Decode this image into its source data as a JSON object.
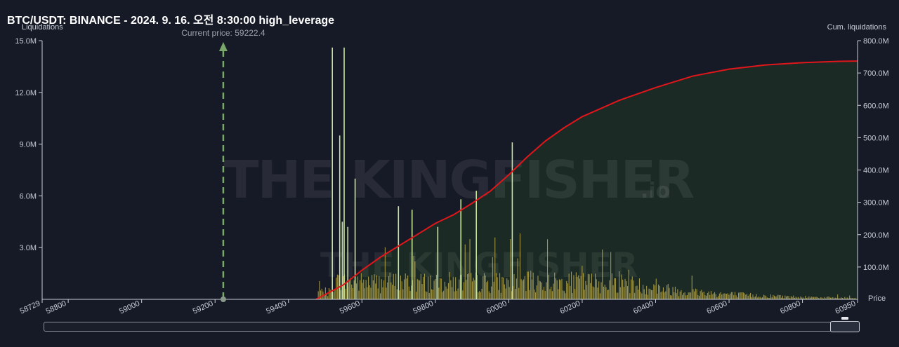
{
  "title": "BTC/USDT: BINANCE - 2024. 9. 16. 오전 8:30:00 high_leverage",
  "current_price_label": "Current price: 59222.4",
  "watermark": {
    "text": "THE KINGFISHER",
    "suffix": ".io"
  },
  "colors": {
    "background": "#161a26",
    "bar": "#b8a84a",
    "bar_highlight": "#c6e39a",
    "cumulative_line": "#e0161b",
    "cumulative_fill": "#1b2b24",
    "current_price_line": "#7aa86a"
  },
  "chart_data": {
    "type": "bar",
    "title": "BTC/USDT: BINANCE - 2024. 9. 16. 오전 8:30:00 high_leverage",
    "xlabel": "Price",
    "ylabel": "Liquidations",
    "y2label": "Cum. liquidations",
    "xlim": [
      58729,
      60950
    ],
    "ylim": [
      0,
      15000000
    ],
    "y2lim": [
      0,
      800000000
    ],
    "x_ticks": [
      "58729",
      "58800",
      "59000",
      "59200",
      "59400",
      "59600",
      "59800",
      "60000",
      "60200",
      "60400",
      "60600",
      "60800",
      "60950"
    ],
    "y_ticks": [
      "3.0M",
      "6.0M",
      "9.0M",
      "12.0M",
      "15.0M"
    ],
    "y2_ticks": [
      "100.0M",
      "200.0M",
      "300.0M",
      "400.0M",
      "500.0M",
      "600.0M",
      "700.0M",
      "800.0M"
    ],
    "current_price": 59222.4,
    "highlight_bars": [
      {
        "x": 59518,
        "value": 14600000
      },
      {
        "x": 59550,
        "value": 14600000
      },
      {
        "x": 59538,
        "value": 9500000
      },
      {
        "x": 59580,
        "value": 7000000
      },
      {
        "x": 59698,
        "value": 5400000
      },
      {
        "x": 59735,
        "value": 5200000
      },
      {
        "x": 59805,
        "value": 4200000
      },
      {
        "x": 59868,
        "value": 5800000
      },
      {
        "x": 59910,
        "value": 6300000
      },
      {
        "x": 60008,
        "value": 9100000
      },
      {
        "x": 59545,
        "value": 4500000
      },
      {
        "x": 59560,
        "value": 4200000
      }
    ],
    "cumulative_series": {
      "name": "Cum. liquidations",
      "x": [
        59475,
        59500,
        59550,
        59600,
        59650,
        59700,
        59750,
        59800,
        59850,
        59900,
        59950,
        60000,
        60050,
        60100,
        60150,
        60200,
        60250,
        60300,
        60400,
        60500,
        60600,
        60700,
        60800,
        60900,
        60950
      ],
      "y": [
        0,
        15000000,
        45000000,
        90000000,
        130000000,
        165000000,
        200000000,
        235000000,
        262000000,
        297000000,
        335000000,
        385000000,
        440000000,
        490000000,
        530000000,
        565000000,
        590000000,
        615000000,
        655000000,
        690000000,
        712000000,
        725000000,
        732000000,
        736000000,
        737000000
      ]
    },
    "legend": "none",
    "grid": false
  }
}
